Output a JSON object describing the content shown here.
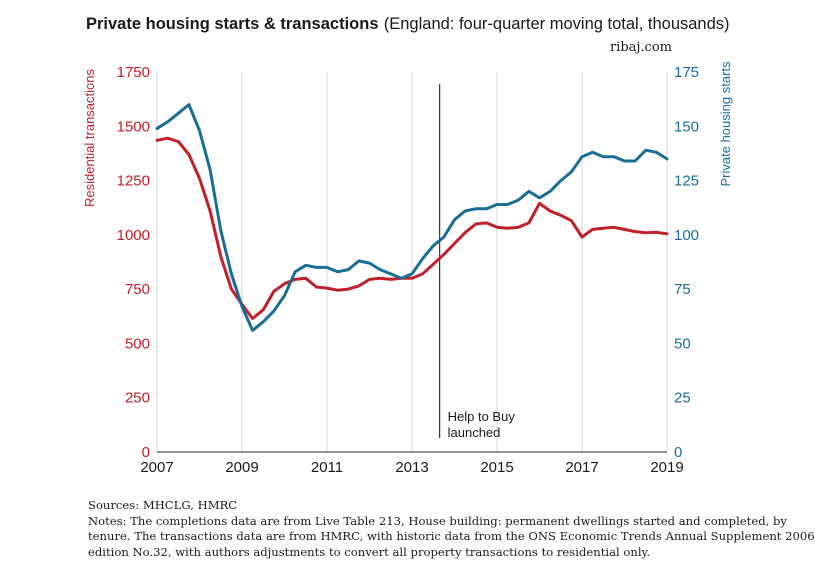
{
  "header": {
    "title_bold": "Private housing starts & transactions",
    "title_rest": "(England: four-quarter moving total, thousands)",
    "credit": "ribaj.com"
  },
  "footer": {
    "sources": "Sources: MHCLG, HMRC",
    "notes_line1": "Notes: The completions data are from Live Table 213, House building: permanent dwellings started and completed, by",
    "notes_line2": "tenure. The transactions data are from HMRC, with historic data from the ONS Economic Trends Annual Supplement 2006",
    "notes_line3": "edition No.32, with authors adjustments to convert all property transactions to residential only."
  },
  "chart_data": {
    "type": "line",
    "x_ticks": [
      "2007",
      "2009",
      "2011",
      "2013",
      "2015",
      "2017",
      "2019"
    ],
    "xlim": [
      2007,
      2019
    ],
    "y_left": {
      "label": "Residential transactions",
      "ticks": [
        "0",
        "250",
        "500",
        "750",
        "1000",
        "1250",
        "1500",
        "1750"
      ],
      "lim": [
        0,
        1750
      ],
      "color": "#c0202a"
    },
    "y_right": {
      "label": "Private housing starts",
      "ticks": [
        "0",
        "25",
        "50",
        "75",
        "100",
        "125",
        "150",
        "175"
      ],
      "lim": [
        0,
        175
      ],
      "color": "#1a6e96"
    },
    "grid": "vertical",
    "annotation": {
      "x": 2013.65,
      "line1": "Help to Buy",
      "line2": "launched"
    },
    "series": [
      {
        "name": "Residential transactions",
        "axis": "left",
        "color": "#c0202a",
        "x": [
          2007.0,
          2007.25,
          2007.5,
          2007.75,
          2008.0,
          2008.25,
          2008.5,
          2008.75,
          2009.0,
          2009.25,
          2009.5,
          2009.75,
          2010.0,
          2010.25,
          2010.5,
          2010.75,
          2011.0,
          2011.25,
          2011.5,
          2011.75,
          2012.0,
          2012.25,
          2012.5,
          2012.75,
          2013.0,
          2013.25,
          2013.5,
          2013.75,
          2014.0,
          2014.25,
          2014.5,
          2014.75,
          2015.0,
          2015.25,
          2015.5,
          2015.75,
          2016.0,
          2016.25,
          2016.5,
          2016.75,
          2017.0,
          2017.25,
          2017.5,
          2017.75,
          2018.0,
          2018.25,
          2018.5,
          2018.75,
          2019.0
        ],
        "y": [
          1435,
          1445,
          1430,
          1370,
          1260,
          1110,
          900,
          750,
          680,
          615,
          655,
          740,
          775,
          795,
          800,
          760,
          755,
          745,
          750,
          765,
          795,
          800,
          795,
          800,
          800,
          820,
          865,
          910,
          960,
          1010,
          1050,
          1055,
          1035,
          1030,
          1035,
          1055,
          1145,
          1110,
          1090,
          1065,
          990,
          1025,
          1030,
          1035,
          1025,
          1015,
          1010,
          1012,
          1005
        ]
      },
      {
        "name": "Private housing starts",
        "axis": "right",
        "color": "#1a6e96",
        "x": [
          2007.0,
          2007.25,
          2007.5,
          2007.75,
          2008.0,
          2008.25,
          2008.5,
          2008.75,
          2009.0,
          2009.25,
          2009.5,
          2009.75,
          2010.0,
          2010.25,
          2010.5,
          2010.75,
          2011.0,
          2011.25,
          2011.5,
          2011.75,
          2012.0,
          2012.25,
          2012.5,
          2012.75,
          2013.0,
          2013.25,
          2013.5,
          2013.75,
          2014.0,
          2014.25,
          2014.5,
          2014.75,
          2015.0,
          2015.25,
          2015.5,
          2015.75,
          2016.0,
          2016.25,
          2016.5,
          2016.75,
          2017.0,
          2017.25,
          2017.5,
          2017.75,
          2018.0,
          2018.25,
          2018.5,
          2018.75,
          2019.0
        ],
        "y": [
          149,
          152,
          156,
          160,
          148,
          130,
          102,
          82,
          67,
          56,
          60,
          65,
          72,
          83,
          86,
          85,
          85,
          83,
          84,
          88,
          87,
          84,
          82,
          80,
          82,
          89,
          95,
          99,
          107,
          111,
          112,
          112,
          114,
          114,
          116,
          120,
          117,
          120,
          125,
          129,
          136,
          138,
          136,
          136,
          134,
          134,
          139,
          138,
          135
        ]
      }
    ]
  }
}
